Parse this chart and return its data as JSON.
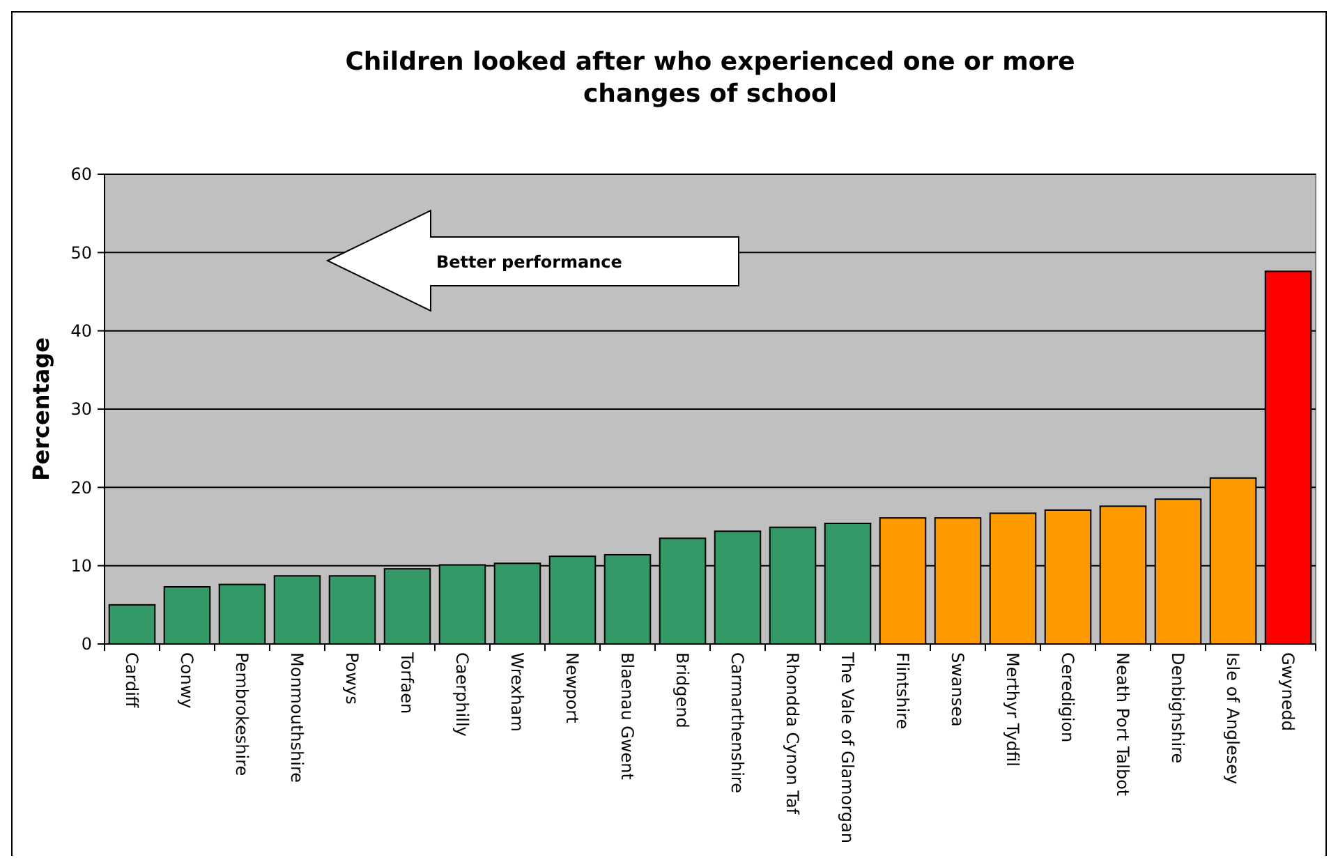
{
  "chart_data": {
    "type": "bar",
    "title": "Children looked after who experienced one or more changes of school",
    "ylabel": "Percentage",
    "categories": [
      "Cardiff",
      "Conwy",
      "Pembrokeshire",
      "Monmouthshire",
      "Powys",
      "Torfaen",
      "Caerphilly",
      "Wrexham",
      "Newport",
      "Blaenau Gwent",
      "Bridgend",
      "Carmarthenshire",
      "Rhondda Cynon Taf",
      "The Vale of Glamorgan",
      "Flintshire",
      "Swansea",
      "Merthyr Tydfil",
      "Ceredigion",
      "Neath Port Talbot",
      "Denbighshire",
      "Isle of Anglesey",
      "Gwynedd"
    ],
    "values": [
      5.0,
      7.3,
      7.6,
      8.7,
      8.7,
      9.6,
      10.1,
      10.3,
      11.2,
      11.4,
      13.5,
      14.4,
      14.9,
      15.4,
      16.1,
      16.1,
      16.7,
      17.1,
      17.6,
      18.5,
      21.2,
      47.6
    ],
    "colors": [
      "#339966",
      "#339966",
      "#339966",
      "#339966",
      "#339966",
      "#339966",
      "#339966",
      "#339966",
      "#339966",
      "#339966",
      "#339966",
      "#339966",
      "#339966",
      "#339966",
      "#ff9900",
      "#ff9900",
      "#ff9900",
      "#ff9900",
      "#ff9900",
      "#ff9900",
      "#ff9900",
      "#ff0000"
    ],
    "ylim": [
      0,
      60
    ],
    "yticks": [
      0,
      10,
      20,
      30,
      40,
      50,
      60
    ],
    "grid": "y",
    "annotations": [
      "Better performance"
    ]
  }
}
